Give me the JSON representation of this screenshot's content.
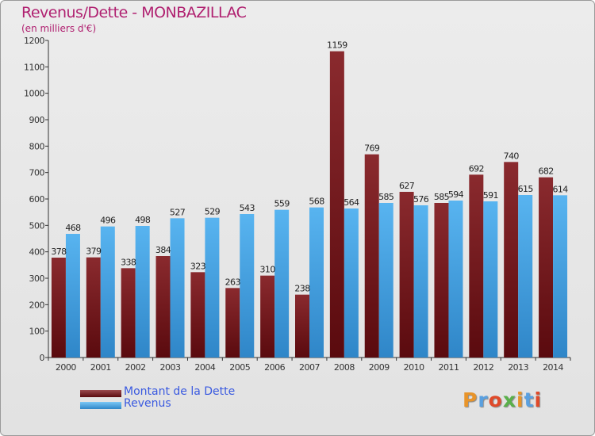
{
  "title": "Revenus/Dette - MONBAZILLAC",
  "subtitle": "(en milliers d'€)",
  "legend": [
    {
      "label": "Montant de la Dette",
      "color": "#7a1f23"
    },
    {
      "label": "Revenus",
      "color": "#4aa8e6"
    }
  ],
  "logo": {
    "text": "Proxiti",
    "colors": [
      "#e8942a",
      "#5aa0e0",
      "#e04a2a",
      "#5ab04a",
      "#e8942a",
      "#5aa0e0",
      "#e04a2a"
    ]
  },
  "chart_data": {
    "type": "bar",
    "categories": [
      "2000",
      "2001",
      "2002",
      "2003",
      "2004",
      "2005",
      "2006",
      "2007",
      "2008",
      "2009",
      "2010",
      "2011",
      "2012",
      "2013",
      "2014"
    ],
    "series": [
      {
        "name": "Montant de la Dette",
        "values": [
          378,
          379,
          338,
          384,
          323,
          263,
          310,
          238,
          1159,
          769,
          627,
          585,
          692,
          740,
          682
        ]
      },
      {
        "name": "Revenus",
        "values": [
          468,
          496,
          498,
          527,
          529,
          543,
          559,
          568,
          564,
          585,
          576,
          594,
          591,
          615,
          614
        ]
      }
    ],
    "ylim": [
      0,
      1200
    ],
    "yticks": [
      0,
      100,
      200,
      300,
      400,
      500,
      600,
      700,
      800,
      900,
      1000,
      1100,
      1200
    ],
    "grid": false
  }
}
